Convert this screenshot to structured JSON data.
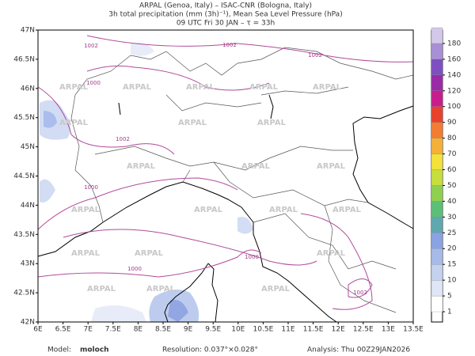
{
  "header": {
    "lines": [
      "ARPAL (Genoa, Italy)  –  ISAC-CNR (Bologna, Italy)",
      "3h total precipitation (mm (3h)⁻¹), Mean Sea Level Pressure (hPa)",
      "09 UTC Fri 30 JAN  –  τ = 33h"
    ]
  },
  "axes": {
    "lon_ticks": [
      "6E",
      "6.5E",
      "7E",
      "7.5E",
      "8E",
      "8.5E",
      "9E",
      "9.5E",
      "10E",
      "10.5E",
      "11E",
      "11.5E",
      "12E",
      "12.5E",
      "13E",
      "13.5E"
    ],
    "lat_ticks": [
      "47N",
      "46.5N",
      "46N",
      "45.5N",
      "45N",
      "44.5N",
      "44N",
      "43.5N",
      "43N",
      "42.5N",
      "42N"
    ]
  },
  "colorbar": {
    "levels": [
      1,
      5,
      10,
      15,
      20,
      25,
      30,
      40,
      50,
      60,
      70,
      80,
      90,
      100,
      120,
      140,
      160,
      180
    ],
    "colors": [
      "#ffffff",
      "#dfe6f6",
      "#c4d2f0",
      "#a7bbe9",
      "#8aa3e2",
      "#5fa8b0",
      "#5cbf78",
      "#8fd050",
      "#c7de3c",
      "#f2e23a",
      "#f5b03a",
      "#f27c32",
      "#e8412c",
      "#c81e8c",
      "#9a2aa8",
      "#7e4fc0",
      "#a88fd6",
      "#d4c8ea"
    ]
  },
  "isobars": {
    "labels": [
      "1002",
      "1002",
      "1002",
      "1000",
      "1002",
      "1000",
      "1000",
      "1000",
      "1002"
    ]
  },
  "watermark": "ARPAL",
  "footer": {
    "model_label": "Model:",
    "model": "moloch",
    "resolution": "Resolution: 0.037°×0.028°",
    "analysis": "Analysis: Thu 00Z29JAN2026"
  }
}
